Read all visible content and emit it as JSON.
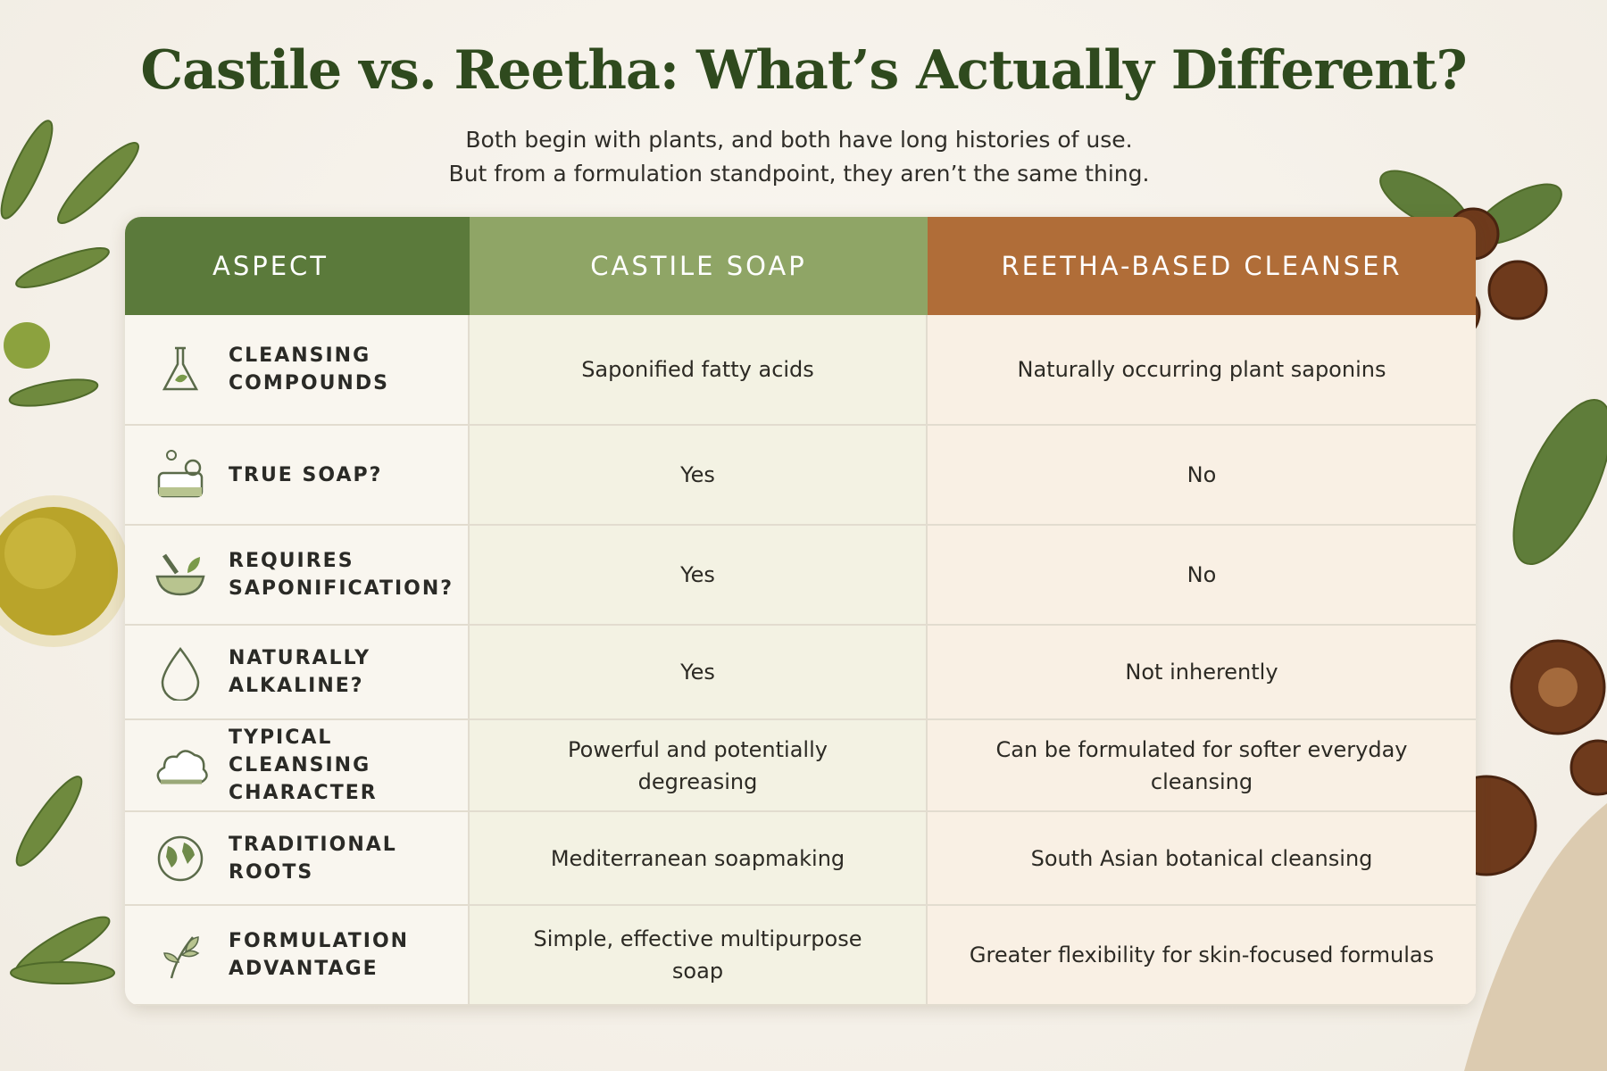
{
  "header": {
    "title": "Castile vs. Reetha: What’s Actually Different?",
    "subtitle": [
      "Both begin with plants, and both have long histories of use.",
      "But from a formulation standpoint, they aren’t the same thing."
    ]
  },
  "table": {
    "columns": [
      "ASPECT",
      "CASTILE SOAP",
      "REETHA-BASED CLEANSER"
    ],
    "rows": [
      [
        "CLEANSING COMPOUNDS",
        "Saponified fatty acids",
        "Naturally occurring plant saponins"
      ],
      [
        "TRUE SOAP?",
        "Yes",
        "No"
      ],
      [
        "REQUIRES SAPONIFICATION?",
        "Yes",
        "No"
      ],
      [
        "NATURALLY ALKALINE?",
        "Yes",
        "Not inherently"
      ],
      [
        "TYPICAL CLEANSING CHARACTER",
        "Powerful and potentially degreasing",
        "Can be formulated for softer everyday cleansing"
      ],
      [
        "TRADITIONAL ROOTS",
        "Mediterranean soapmaking",
        "South Asian botanical cleansing"
      ],
      [
        "FORMULATION ADVANTAGE",
        "Simple, effective multipurpose soap",
        "Greater flexibility for skin-focused formulas"
      ]
    ]
  }
}
